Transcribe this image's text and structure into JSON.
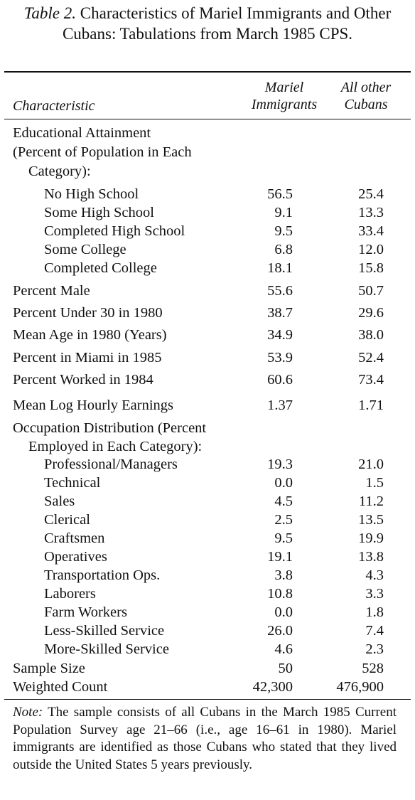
{
  "caption": {
    "label": "Table 2.",
    "title": "Characteristics of Mariel Immigrants and Other Cubans: Tabulations from March 1985 CPS."
  },
  "columns": {
    "characteristic": "Characteristic",
    "mariel_line1": "Mariel",
    "mariel_line2": "Immigrants",
    "other_line1": "All other",
    "other_line2": "Cubans"
  },
  "rows": [
    {
      "label": "Educational Attainment",
      "indent": 0
    },
    {
      "label": "(Percent of Population in Each",
      "indent": 0
    },
    {
      "label": "Category):",
      "indent": 1
    },
    {
      "label": "No High School",
      "indent": 2,
      "mariel": "56.5",
      "other": "25.4"
    },
    {
      "label": "Some High School",
      "indent": 2,
      "mariel": "9.1",
      "other": "13.3"
    },
    {
      "label": "Completed High School",
      "indent": 2,
      "mariel": "9.5",
      "other": "33.4"
    },
    {
      "label": "Some College",
      "indent": 2,
      "mariel": "6.8",
      "other": "12.0"
    },
    {
      "label": "Completed College",
      "indent": 2,
      "mariel": "18.1",
      "other": "15.8"
    },
    {
      "label": "Percent Male",
      "indent": 0,
      "mariel": "55.6",
      "other": "50.7"
    },
    {
      "label": "Percent Under 30 in 1980",
      "indent": 0,
      "mariel": "38.7",
      "other": "29.6"
    },
    {
      "label": "Mean Age in 1980 (Years)",
      "indent": 0,
      "mariel": "34.9",
      "other": "38.0"
    },
    {
      "label": "Percent in Miami in 1985",
      "indent": 0,
      "mariel": "53.9",
      "other": "52.4"
    },
    {
      "label": "Percent Worked in 1984",
      "indent": 0,
      "mariel": "60.6",
      "other": "73.4"
    },
    {
      "label": "Mean Log Hourly Earnings",
      "indent": 0,
      "mariel": "1.37",
      "other": "1.71"
    },
    {
      "label": "Occupation Distribution (Percent",
      "indent": 0
    },
    {
      "label": "Employed in Each Category):",
      "indent": 1
    },
    {
      "label": "Professional/Managers",
      "indent": 2,
      "mariel": "19.3",
      "other": "21.0"
    },
    {
      "label": "Technical",
      "indent": 2,
      "mariel": "0.0",
      "other": "1.5"
    },
    {
      "label": "Sales",
      "indent": 2,
      "mariel": "4.5",
      "other": "11.2"
    },
    {
      "label": "Clerical",
      "indent": 2,
      "mariel": "2.5",
      "other": "13.5"
    },
    {
      "label": "Craftsmen",
      "indent": 2,
      "mariel": "9.5",
      "other": "19.9"
    },
    {
      "label": "Operatives",
      "indent": 2,
      "mariel": "19.1",
      "other": "13.8"
    },
    {
      "label": "Transportation Ops.",
      "indent": 2,
      "mariel": "3.8",
      "other": "4.3"
    },
    {
      "label": "Laborers",
      "indent": 2,
      "mariel": "10.8",
      "other": "3.3"
    },
    {
      "label": "Farm Workers",
      "indent": 2,
      "mariel": "0.0",
      "other": "1.8"
    },
    {
      "label": "Less-Skilled Service",
      "indent": 2,
      "mariel": "26.0",
      "other": "7.4"
    },
    {
      "label": "More-Skilled Service",
      "indent": 2,
      "mariel": "4.6",
      "other": "2.3"
    },
    {
      "label": "Sample Size",
      "indent": 0,
      "mariel": "50",
      "other": "528"
    },
    {
      "label": "Weighted Count",
      "indent": 0,
      "mariel": "42,300",
      "other": "476,900"
    }
  ],
  "note": {
    "label": "Note:",
    "text": "The sample consists of all Cubans in the March 1985 Current Population Survey age 21–66 (i.e., age 16–61 in 1980). Mariel immigrants are identified as those Cubans who stated that they lived outside the United States 5 years previously."
  }
}
